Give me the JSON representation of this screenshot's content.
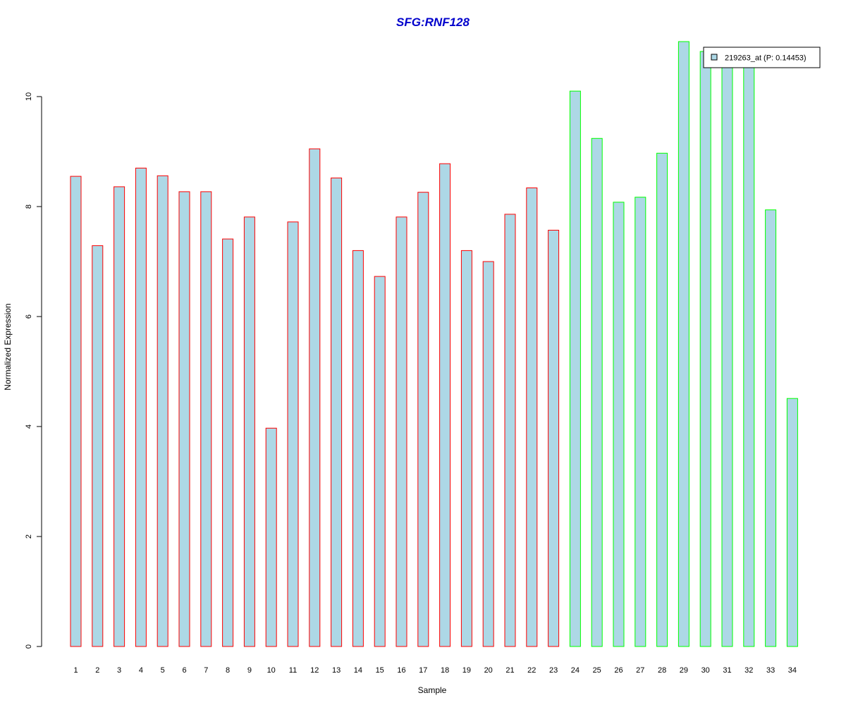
{
  "chart_data": {
    "type": "bar",
    "title": "SFG:RNF128",
    "xlabel": "Sample",
    "ylabel": "Normalized Expression",
    "ylim": [
      0,
      11
    ],
    "yticks": [
      "0",
      "2",
      "4",
      "6",
      "8",
      "10"
    ],
    "categories": [
      "1",
      "2",
      "3",
      "4",
      "5",
      "6",
      "7",
      "8",
      "9",
      "10",
      "11",
      "12",
      "13",
      "14",
      "15",
      "16",
      "17",
      "18",
      "19",
      "20",
      "21",
      "22",
      "23",
      "24",
      "25",
      "26",
      "27",
      "28",
      "29",
      "30",
      "31",
      "32",
      "33",
      "34"
    ],
    "series": [
      {
        "name": "219263_at (P: 0.14453)",
        "values": [
          8.55,
          7.29,
          8.36,
          8.7,
          8.56,
          8.27,
          8.27,
          7.41,
          7.81,
          3.97,
          7.72,
          9.05,
          8.52,
          7.2,
          6.73,
          7.81,
          8.26,
          8.78,
          7.2,
          7.0,
          7.86,
          8.34,
          7.57,
          10.1,
          9.24,
          8.08,
          8.17,
          8.97,
          11.0,
          10.82,
          10.6,
          10.6,
          7.94,
          4.51
        ]
      }
    ],
    "bar_group": [
      1,
      1,
      1,
      1,
      1,
      1,
      1,
      1,
      1,
      1,
      1,
      1,
      1,
      1,
      1,
      1,
      1,
      1,
      1,
      1,
      1,
      1,
      1,
      2,
      2,
      2,
      2,
      2,
      2,
      2,
      2,
      2,
      2,
      2
    ],
    "colors": {
      "bar_fill": "#ADD8E6",
      "group1_border": "#FF0000",
      "group2_border": "#00FF00",
      "title": "#0000CC"
    },
    "grid": false,
    "legend_position": "top-right"
  }
}
